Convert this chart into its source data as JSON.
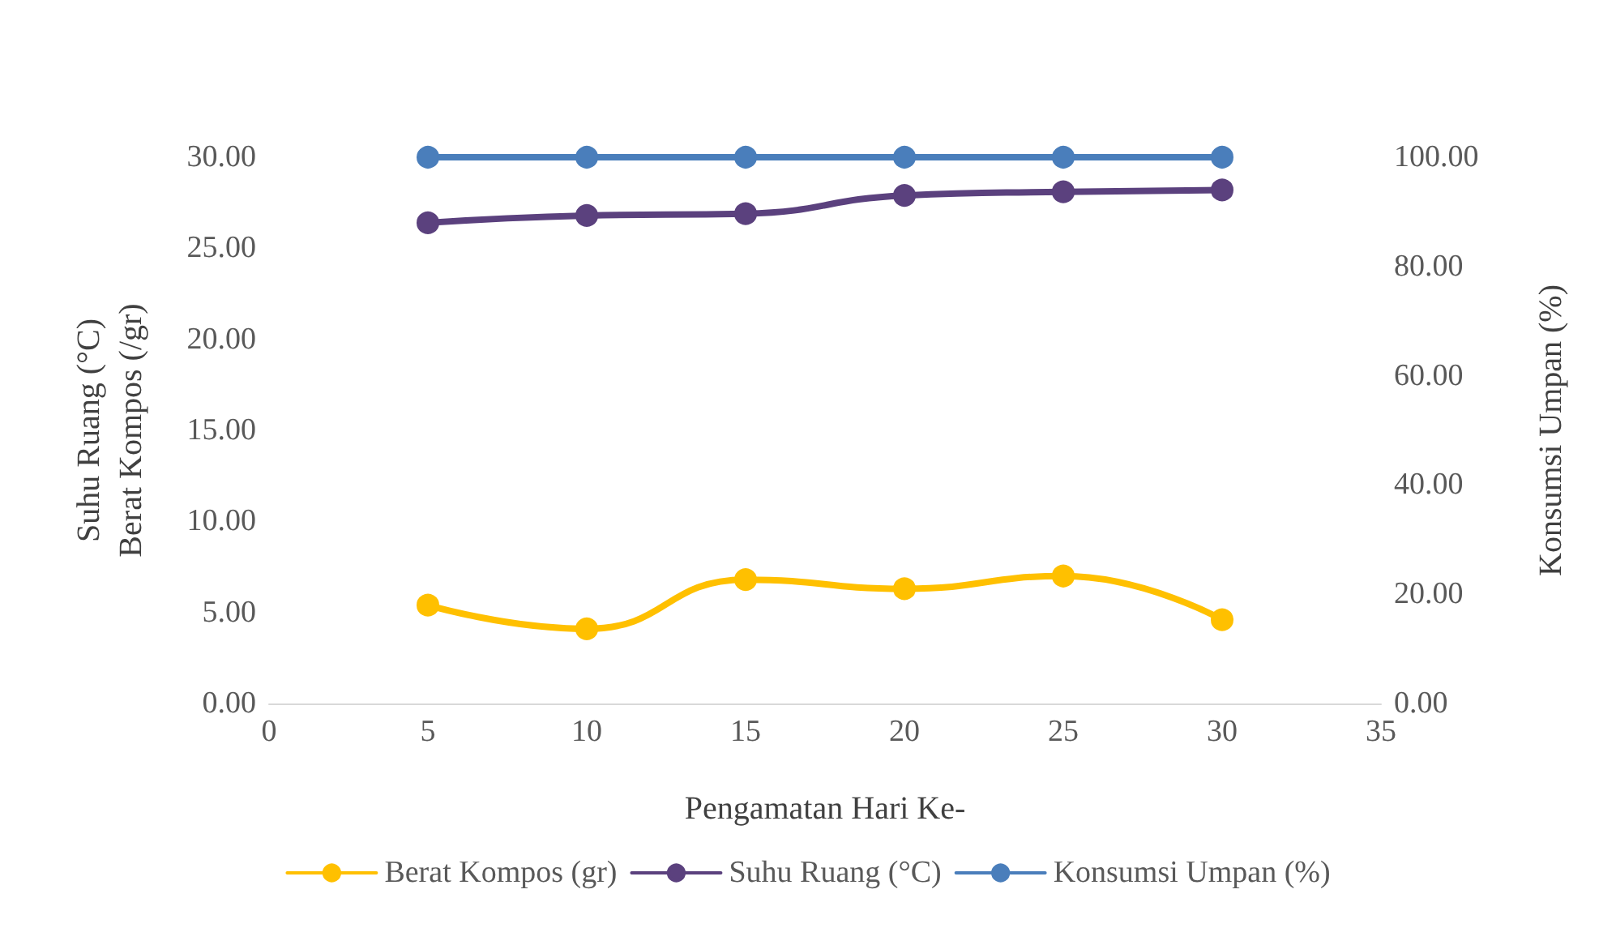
{
  "chart_data": {
    "type": "line",
    "xlabel": "Pengamatan Hari Ke-",
    "ylabel": "Suhu Ruang (°C)\nBerat Kompos (/gr)",
    "y2label": "Konsumsi Umpan (%)",
    "x": [
      5,
      10,
      15,
      20,
      25,
      30
    ],
    "series": [
      {
        "name": "Berat Kompos (gr)",
        "color": "#ffc000",
        "values": [
          5.4,
          4.1,
          6.8,
          6.3,
          7.0,
          4.6
        ]
      },
      {
        "name": "Suhu Ruang (°C)",
        "color": "#5b417e",
        "values": [
          26.4,
          26.8,
          26.9,
          27.9,
          28.1,
          28.2
        ]
      },
      {
        "name": "Konsumsi Umpan (%)",
        "color": "#4a7ebb",
        "axis": "y2",
        "values": [
          100,
          100,
          100,
          100,
          100,
          100
        ]
      }
    ],
    "xlim": [
      0,
      35
    ],
    "xticks": [
      0,
      5,
      10,
      15,
      20,
      25,
      30,
      35
    ],
    "ylim": [
      0,
      30
    ],
    "yticks": [
      {
        "value": 0,
        "label": "0.00"
      },
      {
        "value": 5,
        "label": "5.00"
      },
      {
        "value": 10,
        "label": "10.00"
      },
      {
        "value": 15,
        "label": "15.00"
      },
      {
        "value": 20,
        "label": "20.00"
      },
      {
        "value": 25,
        "label": "25.00"
      },
      {
        "value": 30,
        "label": "30.00"
      }
    ],
    "y2lim": [
      0,
      100
    ],
    "y2ticks": [
      {
        "value": 0,
        "label": "0.00"
      },
      {
        "value": 20,
        "label": "20.00"
      },
      {
        "value": 40,
        "label": "40.00"
      },
      {
        "value": 60,
        "label": "60.00"
      },
      {
        "value": 80,
        "label": "80.00"
      },
      {
        "value": 100,
        "label": "100.00"
      }
    ],
    "marker": "circle",
    "line_style": "solid",
    "grid": false,
    "legend": "bottom"
  }
}
